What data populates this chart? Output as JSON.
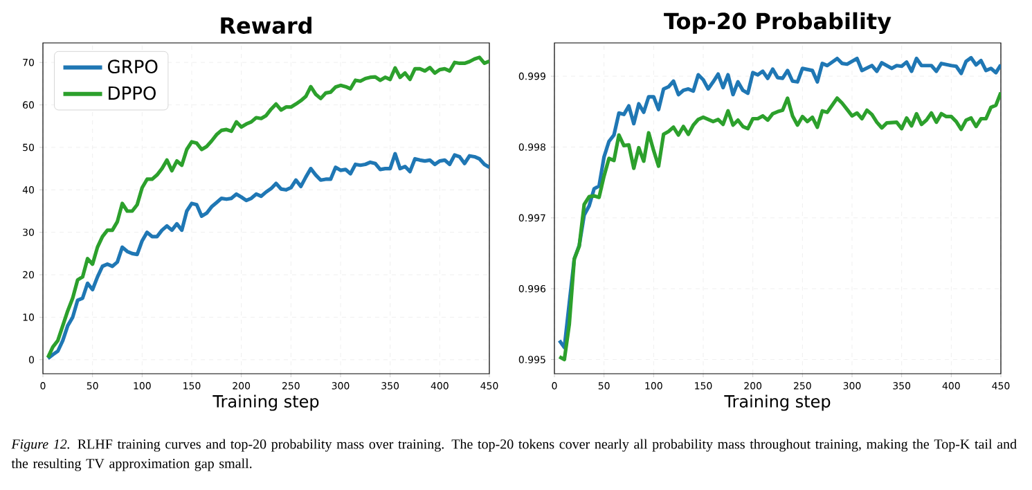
{
  "chart_data": [
    {
      "type": "line",
      "title": "Reward",
      "xlabel": "Training step",
      "xlim": [
        0,
        450
      ],
      "ylim": [
        -3.3,
        74.6
      ],
      "xticks": [
        0,
        50,
        100,
        150,
        200,
        250,
        300,
        350,
        400,
        450
      ],
      "yticks": [
        0,
        10,
        20,
        30,
        40,
        50,
        60,
        70
      ],
      "grid": true,
      "legend": "top left",
      "x": [
        5,
        10,
        15,
        20,
        25,
        30,
        35,
        40,
        45,
        50,
        55,
        60,
        65,
        70,
        75,
        80,
        85,
        90,
        95,
        100,
        105,
        110,
        115,
        120,
        125,
        130,
        135,
        140,
        145,
        150,
        155,
        160,
        165,
        170,
        175,
        180,
        185,
        190,
        195,
        200,
        205,
        210,
        215,
        220,
        225,
        230,
        235,
        240,
        245,
        250,
        255,
        260,
        265,
        270,
        275,
        280,
        285,
        290,
        295,
        300,
        305,
        310,
        315,
        320,
        325,
        330,
        335,
        340,
        345,
        350,
        355,
        360,
        365,
        370,
        375,
        380,
        385,
        390,
        395,
        400,
        405,
        410,
        415,
        420,
        425,
        430,
        435,
        440,
        445,
        450
      ],
      "series": [
        {
          "name": "GRPO",
          "color": "#1f77b4",
          "values": [
            0.3,
            1.2,
            2,
            4.5,
            8,
            10,
            14,
            14.5,
            18,
            16.5,
            19.5,
            22,
            22.5,
            22,
            23,
            26.5,
            25.5,
            25,
            24.8,
            28,
            30,
            29,
            29,
            30.5,
            31.5,
            30.5,
            32,
            30.5,
            35,
            36.8,
            36.5,
            33.8,
            34.5,
            36,
            37,
            38,
            37.8,
            38,
            39,
            38.3,
            37.5,
            38,
            39,
            38.5,
            39.5,
            40.3,
            41.5,
            40.2,
            40,
            40.5,
            42.3,
            40.8,
            43,
            45,
            43.5,
            42.3,
            42.5,
            42.5,
            45.3,
            44.6,
            44.8,
            43.8,
            46,
            45.8,
            46,
            46.5,
            46.2,
            44.8,
            45,
            45,
            48.5,
            45,
            45.5,
            44.3,
            47.3,
            47,
            46.8,
            47,
            46,
            46.8,
            47,
            46,
            48.2,
            47.8,
            46.2,
            48,
            47.8,
            47.3,
            46,
            45.3
          ]
        },
        {
          "name": "DPPO",
          "color": "#2ca02c",
          "values": [
            0.5,
            3,
            4.5,
            8,
            11.5,
            14.5,
            18.8,
            19.5,
            23.8,
            22.5,
            26.5,
            29,
            30.5,
            30.5,
            32.5,
            36.8,
            35,
            35,
            36.5,
            40.5,
            42.5,
            42.5,
            43.5,
            45,
            47,
            44.5,
            46.8,
            45.8,
            49.5,
            51.3,
            51,
            49.5,
            50.2,
            51.5,
            53,
            54,
            54.2,
            53.8,
            56,
            54.8,
            55.5,
            56,
            57,
            56.8,
            57.5,
            59,
            60.2,
            58.8,
            59.5,
            59.5,
            60.2,
            61,
            62,
            64.3,
            62.5,
            61.5,
            62.8,
            63,
            64.2,
            64.6,
            64.3,
            63.8,
            65.8,
            65.6,
            66.2,
            66.5,
            66.6,
            65.8,
            66.5,
            66,
            68.7,
            66.5,
            67.5,
            66,
            68.5,
            68.5,
            68,
            68.8,
            67.5,
            68.3,
            68.5,
            68,
            70,
            69.8,
            69.8,
            70.2,
            70.8,
            71.2,
            69.8,
            70.3
          ]
        }
      ],
      "annotations": [
        "*Figure 12.* RLHF training curves and top-20 probability mass over training. The top-20 tokens cover nearly all probability mass throughout training, making the Top-K tail and the resulting TV approximation gap small."
      ]
    },
    {
      "type": "line",
      "title": "Top-20 Probability",
      "xlabel": "Training step",
      "xlim": [
        0,
        450
      ],
      "ylim": [
        0.9948,
        0.99947
      ],
      "xticks": [
        0,
        50,
        100,
        150,
        200,
        250,
        300,
        350,
        400,
        450
      ],
      "yticks": [
        0.995,
        0.996,
        0.997,
        0.998,
        0.999
      ],
      "grid": true,
      "series": [
        {
          "color": "#1f77b4",
          "x": [
            5,
            10,
            15,
            20,
            25,
            30,
            35,
            40,
            45,
            50,
            55,
            60,
            65,
            70,
            75,
            80,
            85,
            90,
            95,
            100,
            105,
            110,
            115,
            120,
            125,
            130,
            135,
            140,
            145,
            150,
            155,
            160,
            165,
            170,
            175,
            180,
            185,
            190,
            195,
            200,
            205,
            210,
            215,
            220,
            225,
            230,
            235,
            240,
            245,
            250,
            260,
            265,
            270,
            275,
            285,
            290,
            295,
            305,
            310,
            320,
            325,
            330,
            340,
            345,
            350,
            355,
            360,
            365,
            370,
            380,
            385,
            390,
            400,
            405,
            410,
            415,
            420,
            425,
            430,
            435,
            440,
            445,
            450
          ],
          "values": [
            0.99527,
            0.99517,
            0.9958,
            0.99642,
            0.99661,
            0.99704,
            0.99717,
            0.99741,
            0.99745,
            0.99786,
            0.99808,
            0.99817,
            0.99848,
            0.99846,
            0.99858,
            0.99833,
            0.99861,
            0.99849,
            0.99871,
            0.99871,
            0.99853,
            0.99882,
            0.99885,
            0.99893,
            0.99874,
            0.9988,
            0.99882,
            0.99879,
            0.99902,
            0.99895,
            0.99882,
            0.99892,
            0.99903,
            0.99884,
            0.99902,
            0.99874,
            0.99892,
            0.9988,
            0.99876,
            0.99905,
            0.99902,
            0.99907,
            0.99897,
            0.9991,
            0.99898,
            0.99897,
            0.99908,
            0.99893,
            0.99892,
            0.99911,
            0.99908,
            0.99892,
            0.99918,
            0.99915,
            0.99925,
            0.99918,
            0.99917,
            0.99925,
            0.99908,
            0.99915,
            0.99907,
            0.99919,
            0.99911,
            0.99915,
            0.99914,
            0.9992,
            0.99907,
            0.99925,
            0.99915,
            0.99915,
            0.99907,
            0.99918,
            0.99915,
            0.99914,
            0.99904,
            0.99921,
            0.99926,
            0.99916,
            0.99922,
            0.99908,
            0.99911,
            0.99905,
            0.99916
          ]
        },
        {
          "color": "#2ca02c",
          "x": [
            5,
            10,
            15,
            20,
            25,
            30,
            35,
            40,
            45,
            50,
            55,
            60,
            65,
            70,
            75,
            80,
            85,
            90,
            95,
            100,
            105,
            110,
            115,
            120,
            125,
            130,
            135,
            140,
            145,
            150,
            160,
            165,
            170,
            175,
            180,
            185,
            190,
            195,
            200,
            205,
            210,
            215,
            220,
            225,
            230,
            235,
            240,
            245,
            250,
            255,
            260,
            265,
            270,
            275,
            280,
            285,
            290,
            295,
            300,
            305,
            310,
            315,
            320,
            325,
            330,
            335,
            345,
            350,
            355,
            360,
            365,
            370,
            375,
            380,
            385,
            390,
            395,
            400,
            405,
            410,
            415,
            420,
            425,
            430,
            435,
            440,
            445,
            450
          ],
          "values": [
            0.99504,
            0.995,
            0.9955,
            0.99642,
            0.9966,
            0.99719,
            0.9973,
            0.99731,
            0.99729,
            0.99759,
            0.99784,
            0.99781,
            0.99817,
            0.99802,
            0.99803,
            0.9977,
            0.99799,
            0.9978,
            0.9982,
            0.99795,
            0.99773,
            0.99818,
            0.99822,
            0.99828,
            0.99817,
            0.99829,
            0.99818,
            0.99831,
            0.99839,
            0.99842,
            0.99836,
            0.99839,
            0.99832,
            0.99851,
            0.99831,
            0.99838,
            0.99829,
            0.99826,
            0.9984,
            0.9984,
            0.99844,
            0.99838,
            0.99847,
            0.9985,
            0.99852,
            0.99869,
            0.99844,
            0.99831,
            0.99843,
            0.99836,
            0.99842,
            0.99828,
            0.99851,
            0.99849,
            0.99859,
            0.99869,
            0.99862,
            0.99853,
            0.99844,
            0.99848,
            0.9984,
            0.99852,
            0.99846,
            0.99835,
            0.99827,
            0.99834,
            0.99835,
            0.99826,
            0.99841,
            0.9983,
            0.99847,
            0.99832,
            0.99838,
            0.99848,
            0.99835,
            0.99847,
            0.99843,
            0.99843,
            0.99836,
            0.99825,
            0.99838,
            0.99841,
            0.99829,
            0.9984,
            0.9984,
            0.99856,
            0.99859,
            0.99877
          ]
        }
      ]
    }
  ]
}
